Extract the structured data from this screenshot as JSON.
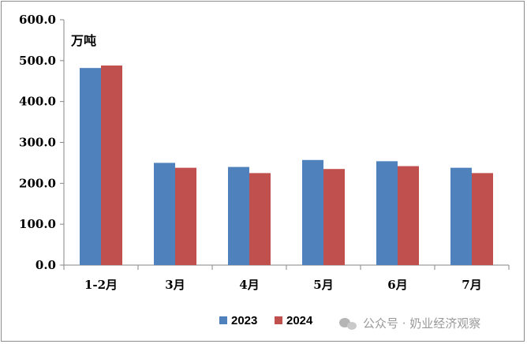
{
  "chart_data": {
    "type": "bar",
    "ylabel": "万吨",
    "categories": [
      "1-2月",
      "3月",
      "4月",
      "5月",
      "6月",
      "7月"
    ],
    "series": [
      {
        "name": "2023",
        "color": "#4f81bd",
        "values": [
          482,
          250,
          240,
          257,
          254,
          238
        ]
      },
      {
        "name": "2024",
        "color": "#c0504d",
        "values": [
          488,
          238,
          225,
          235,
          242,
          225
        ]
      }
    ],
    "ylim": [
      0,
      600
    ],
    "yticks": [
      "0.0",
      "100.0",
      "200.0",
      "300.0",
      "400.0",
      "500.0",
      "600.0"
    ],
    "grid": false,
    "legend_position": "bottom"
  },
  "watermark": {
    "text": "公众号 · 奶业经济观察",
    "icon": "wechat-icon"
  }
}
